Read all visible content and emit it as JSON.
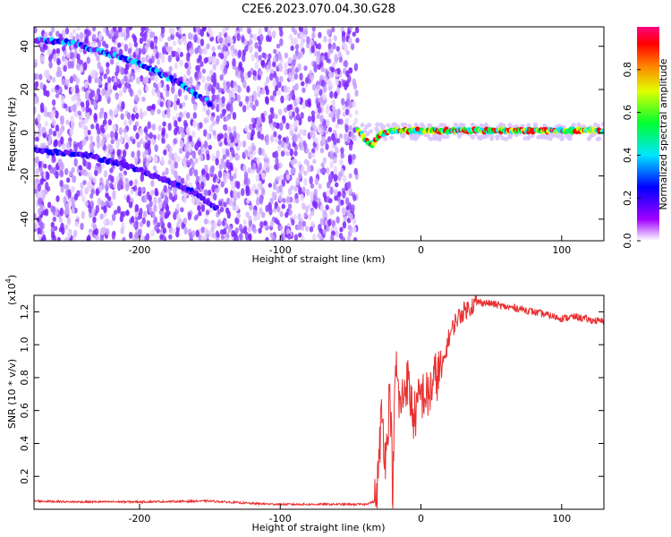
{
  "figure_title": "C2E6.2023.070.04.30.G28",
  "chart_data": [
    {
      "type": "heatmap",
      "name": "spectrogram",
      "xlabel": "Height of straight line (km)",
      "ylabel": "Frequency (Hz)",
      "xlim": [
        -275,
        130
      ],
      "ylim": [
        -50,
        49
      ],
      "xticks": [
        -200,
        -100,
        0,
        100
      ],
      "xtick_labels": [
        "-200",
        "-100",
        "0",
        "100"
      ],
      "yticks": [
        -40,
        -20,
        0,
        20,
        40
      ],
      "ytick_labels": [
        "-40",
        "-20",
        "0",
        "20",
        "40"
      ],
      "grid": false,
      "tracks": [
        {
          "x": [
            -275,
            -250,
            -225,
            -200,
            -175,
            -150
          ],
          "y": [
            43,
            42,
            37,
            32,
            24,
            14
          ]
        },
        {
          "x": [
            -275,
            -240,
            -210,
            -185,
            -160,
            -145
          ],
          "y": [
            -8,
            -10,
            -15,
            -21,
            -28,
            -35
          ]
        },
        {
          "x": [
            -45,
            -40,
            -35,
            -30,
            -20,
            0,
            50,
            100,
            130
          ],
          "y": [
            2,
            -3,
            -6,
            -1,
            1,
            1,
            1,
            1,
            1
          ]
        }
      ],
      "colorbar": {
        "label": "Normalized spectral amplitude",
        "range": [
          0.0,
          1.0
        ],
        "ticks": [
          0.0,
          0.2,
          0.4,
          0.6,
          0.8
        ],
        "tick_labels": [
          "0.0",
          "0.2",
          "0.4",
          "0.6",
          "0.8"
        ],
        "colors": [
          "#ffffff",
          "#a000ff",
          "#0000ff",
          "#00e5ff",
          "#00ff30",
          "#e0ff00",
          "#ff8000",
          "#ff0000",
          "#ff0080"
        ]
      }
    },
    {
      "type": "line",
      "name": "snr",
      "xlabel": "Height of straight line (km)",
      "ylabel": "SNR (10 * v/v)",
      "multiplier_label": "(x10",
      "multiplier_exp": "4",
      "multiplier_close": ")",
      "xlim": [
        -275,
        130
      ],
      "ylim": [
        0,
        13000
      ],
      "xticks": [
        -200,
        -100,
        0,
        100
      ],
      "xtick_labels": [
        "-200",
        "-100",
        "0",
        "100"
      ],
      "yticks": [
        2000,
        4000,
        6000,
        8000,
        10000,
        12000
      ],
      "ytick_labels": [
        "0.2",
        "0.4",
        "0.6",
        "0.8",
        "1.0",
        "1.2"
      ],
      "grid": false,
      "color": "#e83030",
      "series": [
        {
          "x": [
            -275,
            -250,
            -200,
            -150,
            -120,
            -100,
            -60,
            -40,
            -32,
            -30,
            -28,
            -25,
            -22,
            -20,
            -18,
            -15,
            -10,
            -5,
            0,
            5,
            10,
            15,
            20,
            25,
            30,
            35,
            40,
            50,
            60,
            70,
            80,
            90,
            100,
            110,
            120,
            130
          ],
          "y": [
            500,
            450,
            450,
            500,
            350,
            300,
            300,
            300,
            500,
            2500,
            6000,
            3000,
            7500,
            1000,
            9000,
            6000,
            8000,
            5500,
            7000,
            6800,
            8000,
            8500,
            10500,
            11500,
            12000,
            12300,
            12600,
            12500,
            12300,
            12200,
            12000,
            11800,
            11600,
            11700,
            11500,
            11400
          ]
        }
      ]
    }
  ]
}
